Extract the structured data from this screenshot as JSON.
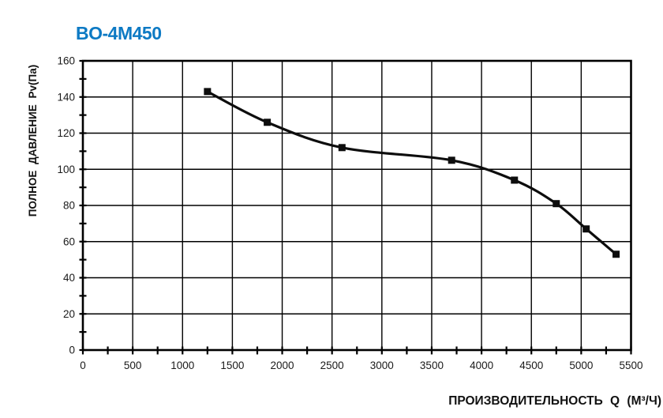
{
  "header": {
    "title": "BO-4M450",
    "title_color": "#0d7ac4"
  },
  "chart_data": {
    "type": "line",
    "title": "BO-4M450",
    "xlabel": "ПРОИЗВОДИТЕЛЬНОСТЬ Q (М³/Ч)",
    "ylabel": "ПОЛНОЕ ДАВЛЕНИЕ Pv(Па)",
    "series": [
      {
        "name": "BO-4M450",
        "x": [
          1250,
          1850,
          2600,
          3700,
          4330,
          4750,
          5050,
          5350
        ],
        "y": [
          143,
          126,
          112,
          105,
          94,
          81,
          67,
          53
        ]
      }
    ],
    "xlim": [
      0,
      5500
    ],
    "ylim": [
      0,
      160
    ],
    "x_ticks": [
      0,
      500,
      1000,
      1500,
      2000,
      2500,
      3000,
      3500,
      4000,
      4500,
      5000,
      5500
    ],
    "x_tick_labels": [
      "0",
      "500",
      "1000",
      "1500",
      "2000",
      "2500",
      "3000",
      "3500",
      "4000",
      "4500",
      "5000",
      "5500"
    ],
    "x_minor_tick_step": 250,
    "y_ticks": [
      0,
      20,
      40,
      60,
      80,
      100,
      120,
      140,
      160
    ],
    "y_tick_labels": [
      "0",
      "20",
      "40",
      "60",
      "80",
      "100",
      "120",
      "140",
      "160"
    ],
    "y_minor_tick_step": 10,
    "grid": "major-both",
    "legend": false,
    "marker": "filled-square",
    "smooth": true,
    "line_color": "#0d0d0d",
    "axis_color": "#000000",
    "tick_label_color": "#1a1a1a",
    "background": "#ffffff"
  }
}
